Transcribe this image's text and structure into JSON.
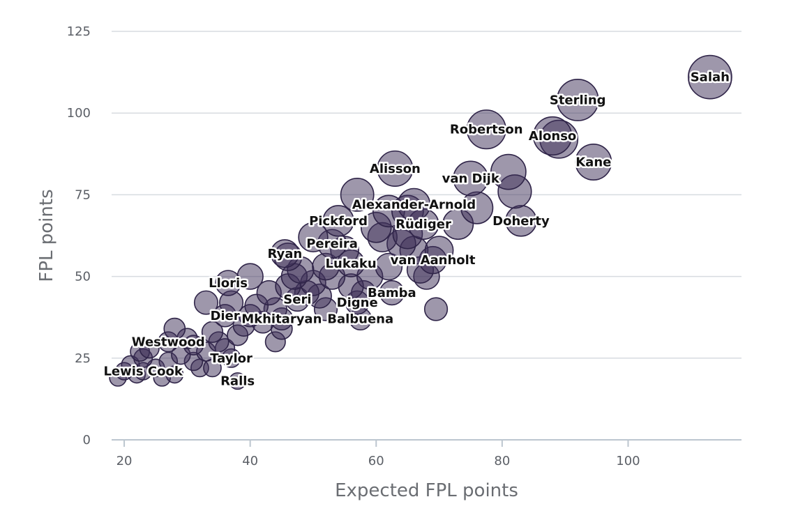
{
  "chart_data": {
    "type": "scatter",
    "title": "",
    "xlabel": "Expected FPL points",
    "ylabel": "FPL points",
    "xlim": [
      18,
      118
    ],
    "ylim": [
      0,
      125
    ],
    "x_ticks": [
      "20",
      "40",
      "60",
      "80",
      "100"
    ],
    "y_ticks": [
      "0",
      "25",
      "50",
      "75",
      "100",
      "125"
    ],
    "grid": "horizontal",
    "labeled_points": [
      {
        "label": "Salah",
        "x": 113,
        "y": 111
      },
      {
        "label": "Sterling",
        "x": 92,
        "y": 104
      },
      {
        "label": "Robertson",
        "x": 77.5,
        "y": 95
      },
      {
        "label": "Alonso",
        "x": 88,
        "y": 93
      },
      {
        "label": "Kane",
        "x": 94.5,
        "y": 85
      },
      {
        "label": "Alisson",
        "x": 63,
        "y": 83
      },
      {
        "label": "van Dijk",
        "x": 75,
        "y": 80
      },
      {
        "label": "Alexander-Arnold",
        "x": 66,
        "y": 72
      },
      {
        "label": "Pickford",
        "x": 54,
        "y": 67
      },
      {
        "label": "Rüdiger",
        "x": 67.5,
        "y": 66
      },
      {
        "label": "Doherty",
        "x": 83,
        "y": 67
      },
      {
        "label": "Pereira",
        "x": 53,
        "y": 60
      },
      {
        "label": "Ryan",
        "x": 45.5,
        "y": 57
      },
      {
        "label": "Lukaku",
        "x": 56,
        "y": 54
      },
      {
        "label": "van Aanholt",
        "x": 69,
        "y": 55
      },
      {
        "label": "Lloris",
        "x": 36.5,
        "y": 48
      },
      {
        "label": "Seri",
        "x": 47.5,
        "y": 43
      },
      {
        "label": "Digne",
        "x": 57,
        "y": 42
      },
      {
        "label": "Bamba",
        "x": 62.5,
        "y": 45
      },
      {
        "label": "Dier",
        "x": 36,
        "y": 38
      },
      {
        "label": "Mkhitaryan",
        "x": 45,
        "y": 37
      },
      {
        "label": "Balbuena",
        "x": 57.5,
        "y": 37
      },
      {
        "label": "Westwood",
        "x": 27,
        "y": 30
      },
      {
        "label": "Taylor",
        "x": 37,
        "y": 25
      },
      {
        "label": "Ralls",
        "x": 38,
        "y": 18
      },
      {
        "label": "Lewis Cook",
        "x": 23,
        "y": 21
      }
    ],
    "other_points": [
      {
        "x": 19,
        "y": 19
      },
      {
        "x": 20,
        "y": 21
      },
      {
        "x": 21,
        "y": 23
      },
      {
        "x": 22,
        "y": 20
      },
      {
        "x": 22.5,
        "y": 27
      },
      {
        "x": 23,
        "y": 25
      },
      {
        "x": 24,
        "y": 28
      },
      {
        "x": 25,
        "y": 22
      },
      {
        "x": 26,
        "y": 19
      },
      {
        "x": 27,
        "y": 24
      },
      {
        "x": 28,
        "y": 20
      },
      {
        "x": 29,
        "y": 26
      },
      {
        "x": 30,
        "y": 31
      },
      {
        "x": 31,
        "y": 29
      },
      {
        "x": 32,
        "y": 22
      },
      {
        "x": 33,
        "y": 27
      },
      {
        "x": 34,
        "y": 33
      },
      {
        "x": 35,
        "y": 30
      },
      {
        "x": 36,
        "y": 28
      },
      {
        "x": 38,
        "y": 32
      },
      {
        "x": 39,
        "y": 35
      },
      {
        "x": 40,
        "y": 38
      },
      {
        "x": 41,
        "y": 41
      },
      {
        "x": 42,
        "y": 36
      },
      {
        "x": 43,
        "y": 45
      },
      {
        "x": 44,
        "y": 40
      },
      {
        "x": 45,
        "y": 34
      },
      {
        "x": 46,
        "y": 47
      },
      {
        "x": 47,
        "y": 50
      },
      {
        "x": 48,
        "y": 52
      },
      {
        "x": 49,
        "y": 45
      },
      {
        "x": 50,
        "y": 48
      },
      {
        "x": 51,
        "y": 44
      },
      {
        "x": 52,
        "y": 53
      },
      {
        "x": 53,
        "y": 50
      },
      {
        "x": 55,
        "y": 58
      },
      {
        "x": 56,
        "y": 47
      },
      {
        "x": 58,
        "y": 45
      },
      {
        "x": 59,
        "y": 50
      },
      {
        "x": 60,
        "y": 65
      },
      {
        "x": 61,
        "y": 62
      },
      {
        "x": 62,
        "y": 70
      },
      {
        "x": 64,
        "y": 60
      },
      {
        "x": 65,
        "y": 63
      },
      {
        "x": 66,
        "y": 58
      },
      {
        "x": 67,
        "y": 52
      },
      {
        "x": 68,
        "y": 50
      },
      {
        "x": 70,
        "y": 58
      },
      {
        "x": 69.5,
        "y": 40
      },
      {
        "x": 73,
        "y": 66
      },
      {
        "x": 76,
        "y": 71
      },
      {
        "x": 81,
        "y": 82
      },
      {
        "x": 82,
        "y": 76
      },
      {
        "x": 89,
        "y": 92
      },
      {
        "x": 46,
        "y": 56
      },
      {
        "x": 50,
        "y": 62
      },
      {
        "x": 33,
        "y": 42
      },
      {
        "x": 40,
        "y": 50
      },
      {
        "x": 28,
        "y": 34
      },
      {
        "x": 31,
        "y": 24
      },
      {
        "x": 37,
        "y": 42
      },
      {
        "x": 44,
        "y": 30
      },
      {
        "x": 34,
        "y": 22
      },
      {
        "x": 52,
        "y": 40
      },
      {
        "x": 62,
        "y": 53
      },
      {
        "x": 65,
        "y": 70
      },
      {
        "x": 57,
        "y": 75
      }
    ],
    "colors": {
      "bubble_fill": "#3e3058",
      "bubble_stroke": "#2f2448"
    }
  }
}
